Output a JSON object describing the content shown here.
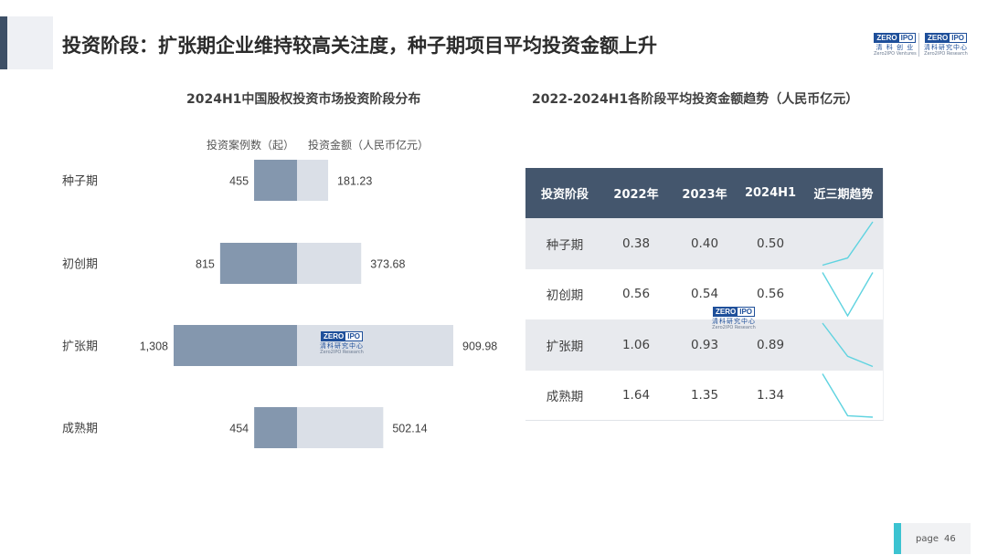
{
  "header": {
    "title": "投资阶段：扩张期企业维持较高关注度，种子期项目平均投资金额上升"
  },
  "logos": {
    "mark_left": "ZERO",
    "mark_right": "IPO",
    "logo1_cn": "清 科 创 业",
    "logo1_en": "Zero2IPO Ventures",
    "logo2_cn": "清科研究中心",
    "logo2_en": "Zero2IPO Research"
  },
  "watermark": {
    "mark_left": "ZERO",
    "mark_right": "IPO",
    "cn": "清科研究中心",
    "en": "Zero2IPO Research"
  },
  "footer": {
    "page_label": "page",
    "page_number": "46"
  },
  "chart_data": [
    {
      "type": "bar",
      "title": "2024H1中国股权投资市场投资阶段分布",
      "legend": [
        "投资案例数（起）",
        "投资金额（人民币亿元）"
      ],
      "categories": [
        "种子期",
        "初创期",
        "扩张期",
        "成熟期"
      ],
      "series": [
        {
          "name": "投资案例数（起）",
          "values": [
            455,
            815,
            1308,
            454
          ],
          "labels": [
            "455",
            "815",
            "1,308",
            "454"
          ],
          "color": "#8497ae"
        },
        {
          "name": "投资金额（人民币亿元）",
          "values": [
            181.23,
            373.68,
            909.98,
            502.14
          ],
          "labels": [
            "181.23",
            "373.68",
            "909.98",
            "502.14"
          ],
          "color": "#dadfe7"
        }
      ]
    },
    {
      "type": "table",
      "title": "2022-2024H1各阶段平均投资金额趋势（人民币亿元）",
      "columns": [
        "投资阶段",
        "2022年",
        "2023年",
        "2024H1",
        "近三期趋势"
      ],
      "rows": [
        {
          "stage": "种子期",
          "values": [
            0.38,
            0.4,
            0.5
          ],
          "labels": [
            "0.38",
            "0.40",
            "0.50"
          ]
        },
        {
          "stage": "初创期",
          "values": [
            0.56,
            0.54,
            0.56
          ],
          "labels": [
            "0.56",
            "0.54",
            "0.56"
          ]
        },
        {
          "stage": "扩张期",
          "values": [
            1.06,
            0.93,
            0.89
          ],
          "labels": [
            "1.06",
            "0.93",
            "0.89"
          ]
        },
        {
          "stage": "成熟期",
          "values": [
            1.64,
            1.35,
            1.34
          ],
          "labels": [
            "1.64",
            "1.35",
            "1.34"
          ]
        }
      ],
      "sparkline_color": "#5fd3e0"
    }
  ]
}
